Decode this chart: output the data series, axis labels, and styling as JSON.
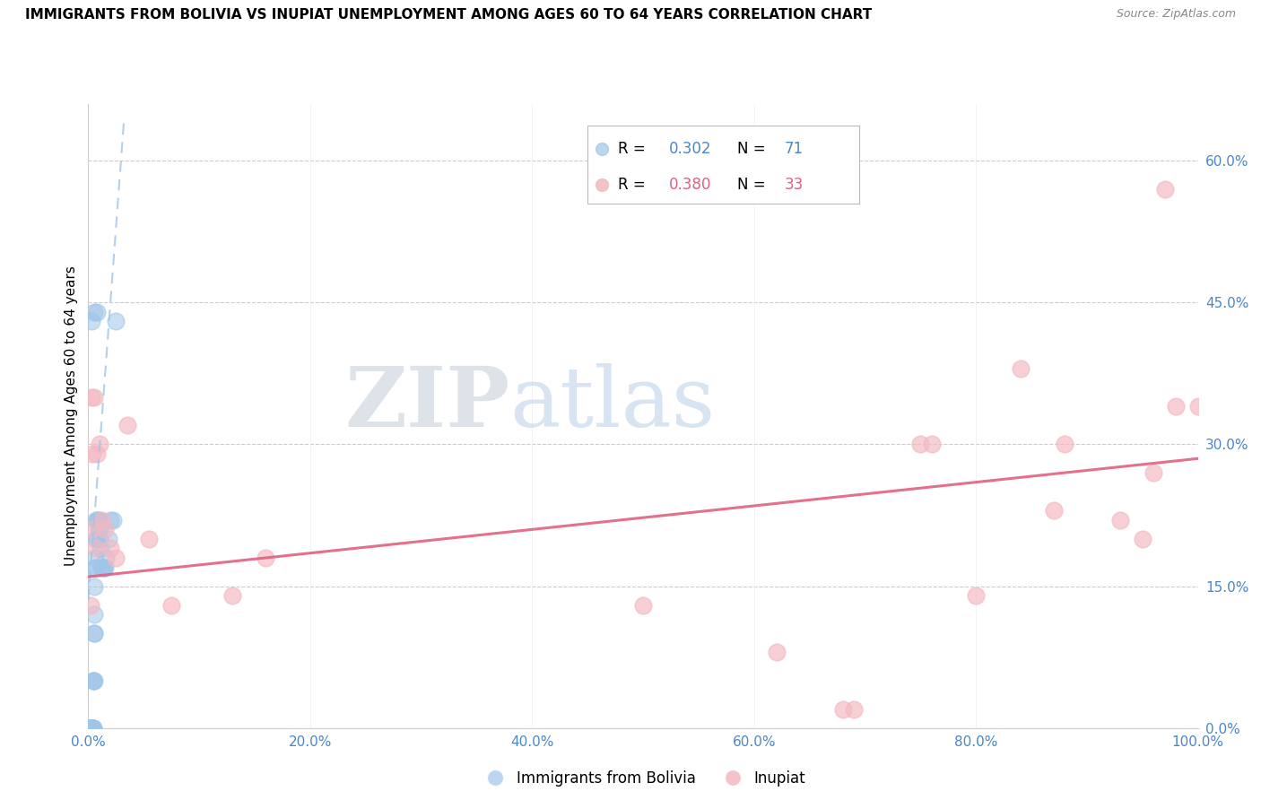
{
  "title": "IMMIGRANTS FROM BOLIVIA VS INUPIAT UNEMPLOYMENT AMONG AGES 60 TO 64 YEARS CORRELATION CHART",
  "source": "Source: ZipAtlas.com",
  "ylabel": "Unemployment Among Ages 60 to 64 years",
  "xlim": [
    0,
    1.0
  ],
  "ylim": [
    0,
    0.66
  ],
  "xticks": [
    0.0,
    0.2,
    0.4,
    0.6,
    0.8,
    1.0
  ],
  "xticklabels": [
    "0.0%",
    "20.0%",
    "40.0%",
    "60.0%",
    "80.0%",
    "100.0%"
  ],
  "yticks_right": [
    0.0,
    0.15,
    0.3,
    0.45,
    0.6
  ],
  "yticklabels_right": [
    "0.0%",
    "15.0%",
    "30.0%",
    "45.0%",
    "60.0%"
  ],
  "watermark_zip": "ZIP",
  "watermark_atlas": "atlas",
  "legend_r1": "R = 0.302",
  "legend_n1": "N = 71",
  "legend_r2": "R = 0.380",
  "legend_n2": "N = 33",
  "blue_color": "#9fc5e8",
  "pink_color": "#f4b8c1",
  "pink_line_color": "#e06080",
  "blue_line_color": "#9fc5e8",
  "tick_color": "#4a86c8",
  "blue_scatter_x": [
    0.0005,
    0.0008,
    0.001,
    0.001,
    0.001,
    0.0012,
    0.0013,
    0.0014,
    0.0015,
    0.0015,
    0.0016,
    0.0017,
    0.0018,
    0.0019,
    0.002,
    0.002,
    0.002,
    0.0021,
    0.0022,
    0.0023,
    0.0024,
    0.0025,
    0.0026,
    0.0027,
    0.0028,
    0.003,
    0.003,
    0.003,
    0.0031,
    0.0032,
    0.0033,
    0.0034,
    0.0035,
    0.0036,
    0.0037,
    0.004,
    0.004,
    0.0042,
    0.0044,
    0.0046,
    0.0048,
    0.005,
    0.005,
    0.0052,
    0.0054,
    0.0056,
    0.006,
    0.006,
    0.0065,
    0.007,
    0.007,
    0.0075,
    0.008,
    0.009,
    0.009,
    0.0095,
    0.01,
    0.01,
    0.011,
    0.012,
    0.013,
    0.014,
    0.015,
    0.016,
    0.018,
    0.02,
    0.022,
    0.025,
    0.003,
    0.005,
    0.008
  ],
  "blue_scatter_y": [
    0.0,
    0.0,
    0.0,
    0.0,
    0.0,
    0.0,
    0.0,
    0.0,
    0.0,
    0.0,
    0.0,
    0.0,
    0.0,
    0.0,
    0.0,
    0.0,
    0.0,
    0.0,
    0.0,
    0.0,
    0.0,
    0.0,
    0.0,
    0.0,
    0.0,
    0.0,
    0.0,
    0.0,
    0.0,
    0.0,
    0.0,
    0.0,
    0.0,
    0.0,
    0.0,
    0.0,
    0.0,
    0.0,
    0.0,
    0.05,
    0.05,
    0.05,
    0.1,
    0.1,
    0.12,
    0.15,
    0.17,
    0.17,
    0.18,
    0.2,
    0.22,
    0.22,
    0.2,
    0.21,
    0.22,
    0.22,
    0.21,
    0.2,
    0.19,
    0.17,
    0.17,
    0.17,
    0.17,
    0.18,
    0.2,
    0.22,
    0.22,
    0.43,
    0.43,
    0.44,
    0.44
  ],
  "pink_scatter_x": [
    0.003,
    0.005,
    0.008,
    0.01,
    0.012,
    0.015,
    0.02,
    0.025,
    0.035,
    0.055,
    0.075,
    0.13,
    0.16,
    0.5,
    0.62,
    0.68,
    0.69,
    0.75,
    0.76,
    0.8,
    0.84,
    0.87,
    0.88,
    0.93,
    0.95,
    0.96,
    0.97,
    0.98,
    1.0,
    0.002,
    0.003,
    0.004,
    0.006
  ],
  "pink_scatter_y": [
    0.35,
    0.35,
    0.29,
    0.3,
    0.22,
    0.21,
    0.19,
    0.18,
    0.32,
    0.2,
    0.13,
    0.14,
    0.18,
    0.13,
    0.08,
    0.02,
    0.02,
    0.3,
    0.3,
    0.14,
    0.38,
    0.23,
    0.3,
    0.22,
    0.2,
    0.27,
    0.57,
    0.34,
    0.34,
    0.13,
    0.21,
    0.29,
    0.19
  ],
  "blue_trendline_x": [
    0.0,
    0.032
  ],
  "blue_trendline_y": [
    0.135,
    0.64
  ],
  "pink_trendline_x": [
    0.0,
    1.0
  ],
  "pink_trendline_y": [
    0.16,
    0.285
  ]
}
